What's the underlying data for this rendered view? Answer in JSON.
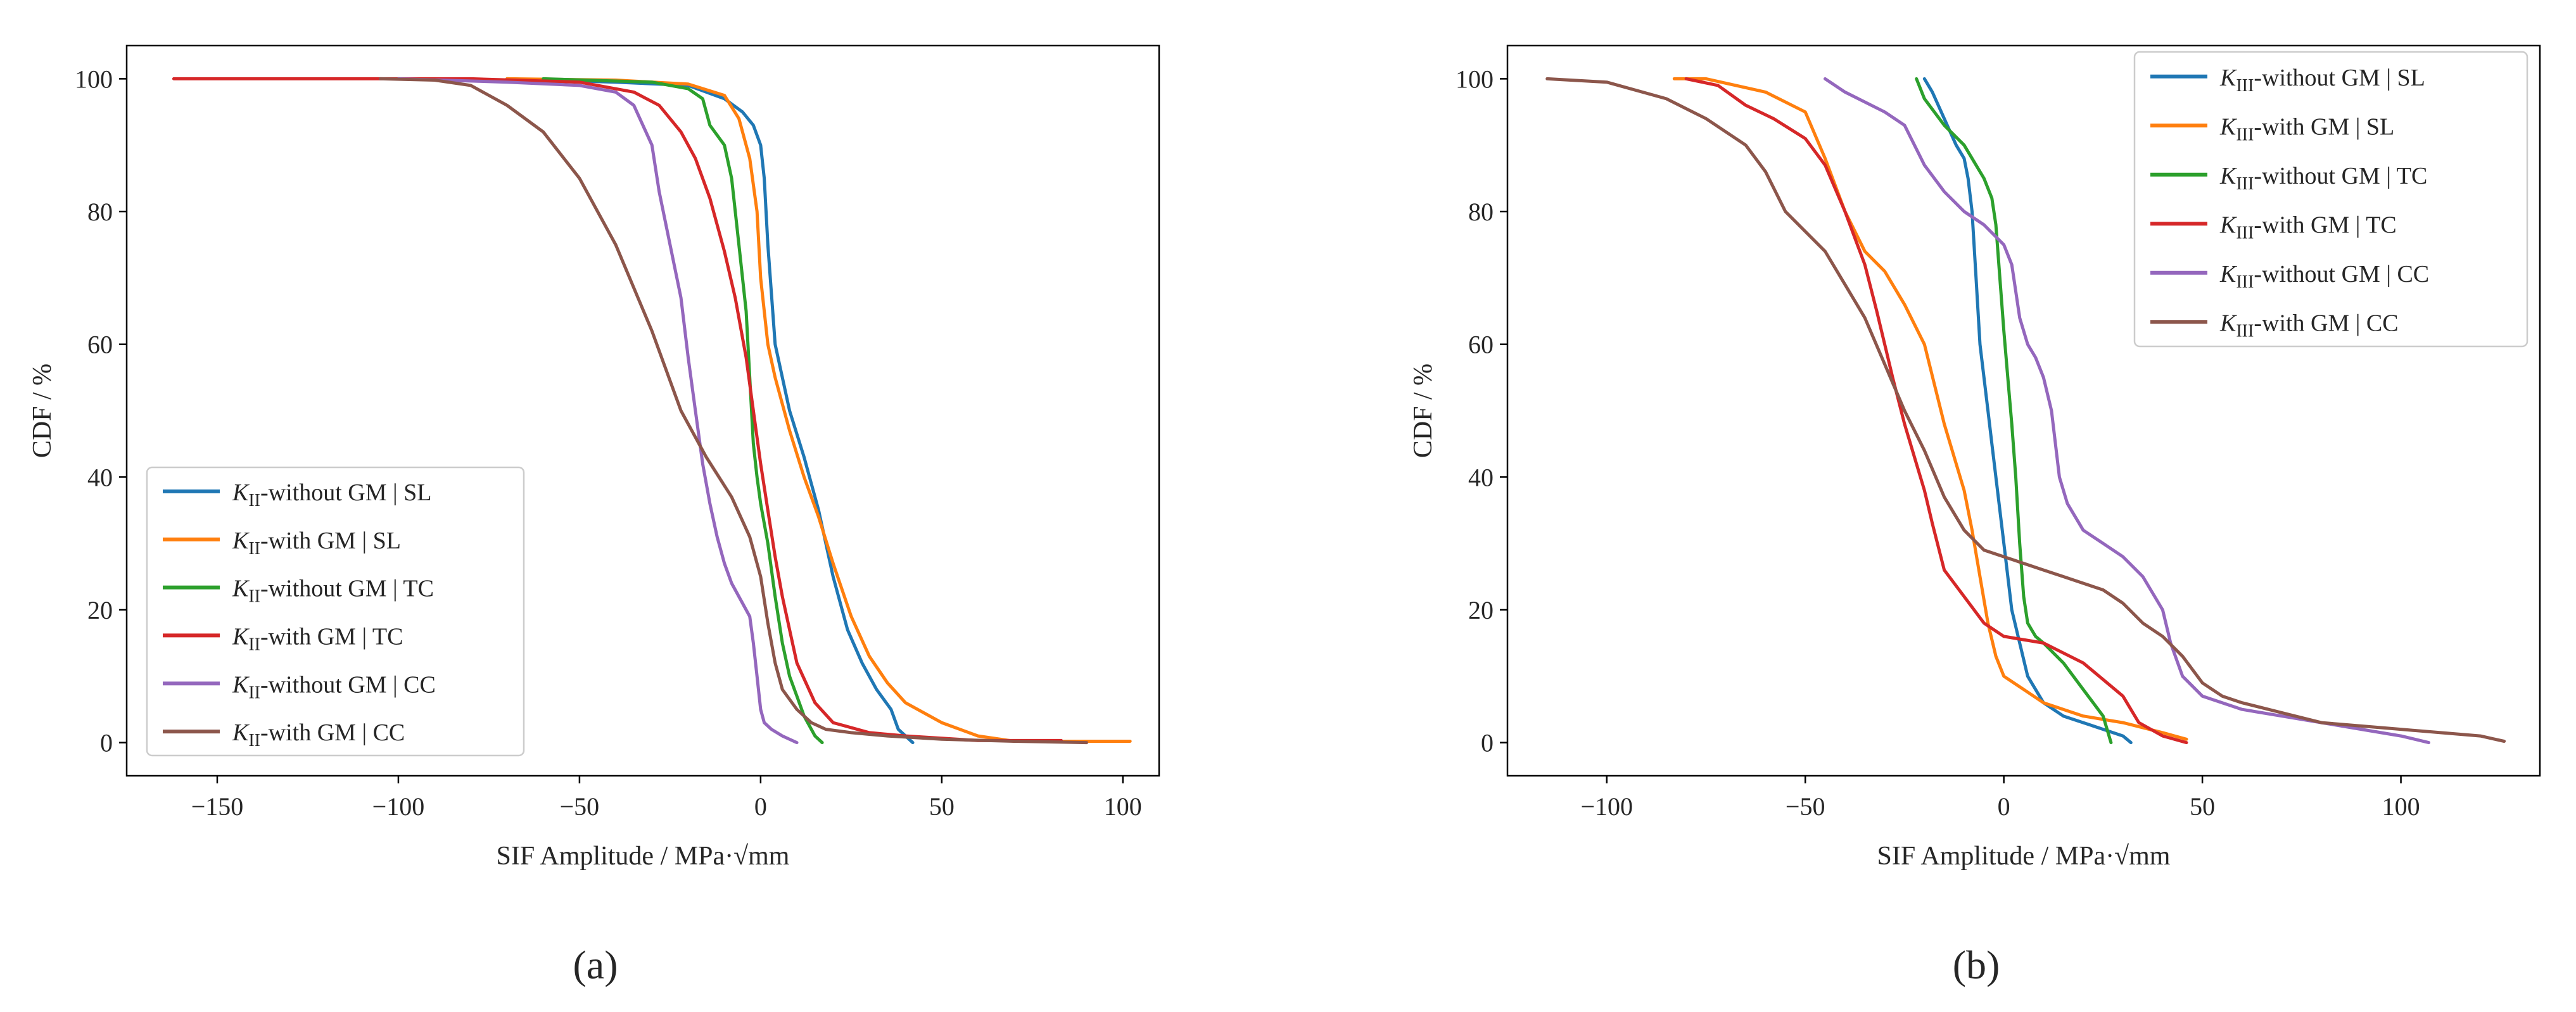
{
  "figure": {
    "panels": [
      {
        "caption": "(a)",
        "xlabel": "SIF Amplitude / MPa·√mm",
        "ylabel": "CDF / %",
        "legend_base": "K",
        "legend_sub": "II",
        "legend_position": "lower-left"
      },
      {
        "caption": "(b)",
        "xlabel": "SIF Amplitude / MPa·√mm",
        "ylabel": "CDF / %",
        "legend_base": "K",
        "legend_sub": "III",
        "legend_position": "upper-right"
      }
    ]
  },
  "chart_data": [
    {
      "type": "line",
      "xlabel": "SIF Amplitude / MPa·√mm",
      "ylabel": "CDF / %",
      "xlim": [
        -175,
        110
      ],
      "ylim": [
        -5,
        105
      ],
      "xticks": [
        -150,
        -100,
        -50,
        0,
        50,
        100
      ],
      "yticks": [
        0,
        20,
        40,
        60,
        80,
        100
      ],
      "xticklabels": [
        "−150",
        "−100",
        "−50",
        "0",
        "50",
        "100"
      ],
      "yticklabels": [
        "0",
        "20",
        "40",
        "60",
        "80",
        "100"
      ],
      "grid": false,
      "legend": "lower-left",
      "series": [
        {
          "name": "K_II-without GM | SL",
          "legend_suffix": "-without GM | SL",
          "color": "#1f77b4",
          "x": [
            -70,
            -40,
            -20,
            -10,
            -5,
            -2,
            0,
            1,
            2,
            4,
            8,
            12,
            16,
            20,
            24,
            28,
            32,
            36,
            38,
            42
          ],
          "y": [
            100,
            99.5,
            99,
            97,
            95,
            93,
            90,
            85,
            75,
            60,
            50,
            43,
            35,
            25,
            17,
            12,
            8,
            5,
            2,
            0
          ]
        },
        {
          "name": "K_II-with GM | SL",
          "legend_suffix": "-with GM | SL",
          "color": "#ff7f0e",
          "x": [
            -70,
            -40,
            -20,
            -10,
            -6,
            -3,
            -1,
            0,
            2,
            4,
            8,
            12,
            16,
            20,
            25,
            30,
            35,
            40,
            50,
            60,
            70,
            102
          ],
          "y": [
            100,
            99.8,
            99.2,
            97.5,
            94,
            88,
            80,
            70,
            60,
            55,
            47,
            40,
            34,
            27,
            19,
            13,
            9,
            6,
            3,
            1,
            0.2,
            0.2
          ]
        },
        {
          "name": "K_II-without GM | TC",
          "legend_suffix": "-without GM | TC",
          "color": "#2ca02c",
          "x": [
            -60,
            -30,
            -20,
            -16,
            -14,
            -10,
            -8,
            -6,
            -4,
            -3,
            -2,
            -1,
            0,
            2,
            4,
            6,
            8,
            10,
            12,
            15,
            17
          ],
          "y": [
            100,
            99.5,
            98.5,
            97,
            93,
            90,
            85,
            75,
            65,
            55,
            45,
            40,
            36,
            30,
            22,
            15,
            10,
            7,
            4,
            1,
            0
          ]
        },
        {
          "name": "K_II-with GM | TC",
          "legend_suffix": "-with GM | TC",
          "color": "#d62728",
          "x": [
            -162,
            -120,
            -80,
            -50,
            -35,
            -28,
            -22,
            -18,
            -14,
            -10,
            -7,
            -4,
            -2,
            0,
            2,
            4,
            6,
            8,
            10,
            15,
            20,
            30,
            40,
            60,
            83
          ],
          "y": [
            100,
            100,
            100,
            99.5,
            98,
            96,
            92,
            88,
            82,
            74,
            67,
            58,
            50,
            42,
            35,
            28,
            22,
            17,
            12,
            6,
            3,
            1.5,
            1,
            0.3,
            0.3
          ]
        },
        {
          "name": "K_II-without GM | CC",
          "legend_suffix": "-without GM | CC",
          "color": "#9467bd",
          "x": [
            -100,
            -70,
            -50,
            -40,
            -35,
            -30,
            -28,
            -25,
            -22,
            -20,
            -18,
            -16,
            -14,
            -12,
            -10,
            -8,
            -5,
            -3,
            -2,
            -1,
            0,
            1,
            3,
            6,
            10
          ],
          "y": [
            100,
            99.5,
            99,
            98,
            96,
            90,
            83,
            75,
            67,
            58,
            50,
            42,
            36,
            31,
            27,
            24,
            21,
            19,
            15,
            10,
            5,
            3,
            2,
            1,
            0
          ]
        },
        {
          "name": "K_II-with GM | CC",
          "legend_suffix": "-with GM | CC",
          "color": "#8c564b",
          "x": [
            -105,
            -90,
            -80,
            -70,
            -60,
            -50,
            -40,
            -30,
            -22,
            -15,
            -8,
            -3,
            0,
            2,
            4,
            6,
            10,
            14,
            18,
            25,
            35,
            50,
            70,
            90
          ],
          "y": [
            100,
            99.8,
            99,
            96,
            92,
            85,
            75,
            62,
            50,
            43,
            37,
            31,
            25,
            18,
            12,
            8,
            5,
            3,
            2,
            1.5,
            1,
            0.5,
            0.2,
            0
          ]
        }
      ]
    },
    {
      "type": "line",
      "xlabel": "SIF Amplitude / MPa·√mm",
      "ylabel": "CDF / %",
      "xlim": [
        -125,
        135
      ],
      "ylim": [
        -5,
        105
      ],
      "xticks": [
        -100,
        -50,
        0,
        50,
        100
      ],
      "yticks": [
        0,
        20,
        40,
        60,
        80,
        100
      ],
      "xticklabels": [
        "−100",
        "−50",
        "0",
        "50",
        "100"
      ],
      "yticklabels": [
        "0",
        "20",
        "40",
        "60",
        "80",
        "100"
      ],
      "grid": false,
      "legend": "upper-right",
      "series": [
        {
          "name": "K_III-without GM | SL",
          "legend_suffix": "-without GM | SL",
          "color": "#1f77b4",
          "x": [
            -20,
            -18,
            -15,
            -12,
            -10,
            -9,
            -8,
            -7,
            -6,
            -5,
            -4,
            -3,
            -2,
            0,
            2,
            4,
            6,
            10,
            15,
            20,
            25,
            30,
            32
          ],
          "y": [
            100,
            98,
            94,
            90,
            88,
            85,
            80,
            70,
            60,
            55,
            50,
            45,
            40,
            30,
            20,
            15,
            10,
            6,
            4,
            3,
            2,
            1,
            0
          ]
        },
        {
          "name": "K_III-with GM | SL",
          "legend_suffix": "-with GM | SL",
          "color": "#ff7f0e",
          "x": [
            -83,
            -75,
            -60,
            -50,
            -45,
            -40,
            -35,
            -30,
            -25,
            -20,
            -15,
            -10,
            -8,
            -6,
            -4,
            -2,
            0,
            5,
            10,
            20,
            30,
            40,
            46
          ],
          "y": [
            100,
            100,
            98,
            95,
            88,
            80,
            74,
            71,
            66,
            60,
            48,
            38,
            32,
            25,
            18,
            13,
            10,
            8,
            6,
            4,
            3,
            1.5,
            0.5
          ]
        },
        {
          "name": "K_III-without GM | TC",
          "legend_suffix": "-without GM | TC",
          "color": "#2ca02c",
          "x": [
            -22,
            -20,
            -15,
            -10,
            -5,
            -3,
            -2,
            -1,
            0,
            1,
            2,
            3,
            4,
            5,
            6,
            7,
            8,
            10,
            15,
            20,
            25,
            27
          ],
          "y": [
            100,
            97,
            93,
            90,
            85,
            82,
            78,
            70,
            62,
            55,
            48,
            40,
            30,
            22,
            18,
            17,
            16,
            15,
            12,
            8,
            4,
            0
          ]
        },
        {
          "name": "K_III-with GM | TC",
          "legend_suffix": "-with GM | TC",
          "color": "#d62728",
          "x": [
            -80,
            -72,
            -65,
            -58,
            -50,
            -45,
            -40,
            -35,
            -32,
            -30,
            -28,
            -25,
            -22,
            -20,
            -18,
            -15,
            -10,
            -5,
            0,
            10,
            20,
            30,
            34,
            40,
            46
          ],
          "y": [
            100,
            99,
            96,
            94,
            91,
            87,
            80,
            72,
            65,
            60,
            55,
            48,
            42,
            38,
            33,
            26,
            22,
            18,
            16,
            15,
            12,
            7,
            3,
            1,
            0
          ]
        },
        {
          "name": "K_III-without GM | CC",
          "legend_suffix": "-without GM | CC",
          "color": "#9467bd",
          "x": [
            -45,
            -40,
            -30,
            -25,
            -20,
            -15,
            -10,
            -5,
            0,
            2,
            4,
            6,
            8,
            10,
            12,
            14,
            16,
            20,
            25,
            30,
            35,
            40,
            42,
            45,
            50,
            55,
            60,
            70,
            80,
            90,
            100,
            107
          ],
          "y": [
            100,
            98,
            95,
            93,
            87,
            83,
            80,
            78,
            75,
            72,
            64,
            60,
            58,
            55,
            50,
            40,
            36,
            32,
            30,
            28,
            25,
            20,
            15,
            10,
            7,
            6,
            5,
            4,
            3,
            2,
            1,
            0
          ]
        },
        {
          "name": "K_III-with GM | CC",
          "legend_suffix": "-with GM | CC",
          "color": "#8c564b",
          "x": [
            -115,
            -100,
            -85,
            -75,
            -65,
            -60,
            -55,
            -50,
            -45,
            -40,
            -35,
            -30,
            -25,
            -20,
            -15,
            -10,
            -5,
            0,
            5,
            10,
            15,
            20,
            25,
            30,
            35,
            40,
            45,
            50,
            55,
            60,
            70,
            80,
            90,
            100,
            110,
            120,
            126
          ],
          "y": [
            100,
            99.5,
            97,
            94,
            90,
            86,
            80,
            77,
            74,
            69,
            64,
            57,
            50,
            44,
            37,
            32,
            29,
            28,
            27,
            26,
            25,
            24,
            23,
            21,
            18,
            16,
            13,
            9,
            7,
            6,
            4.5,
            3,
            2.5,
            2,
            1.5,
            1,
            0.2
          ]
        }
      ]
    }
  ]
}
